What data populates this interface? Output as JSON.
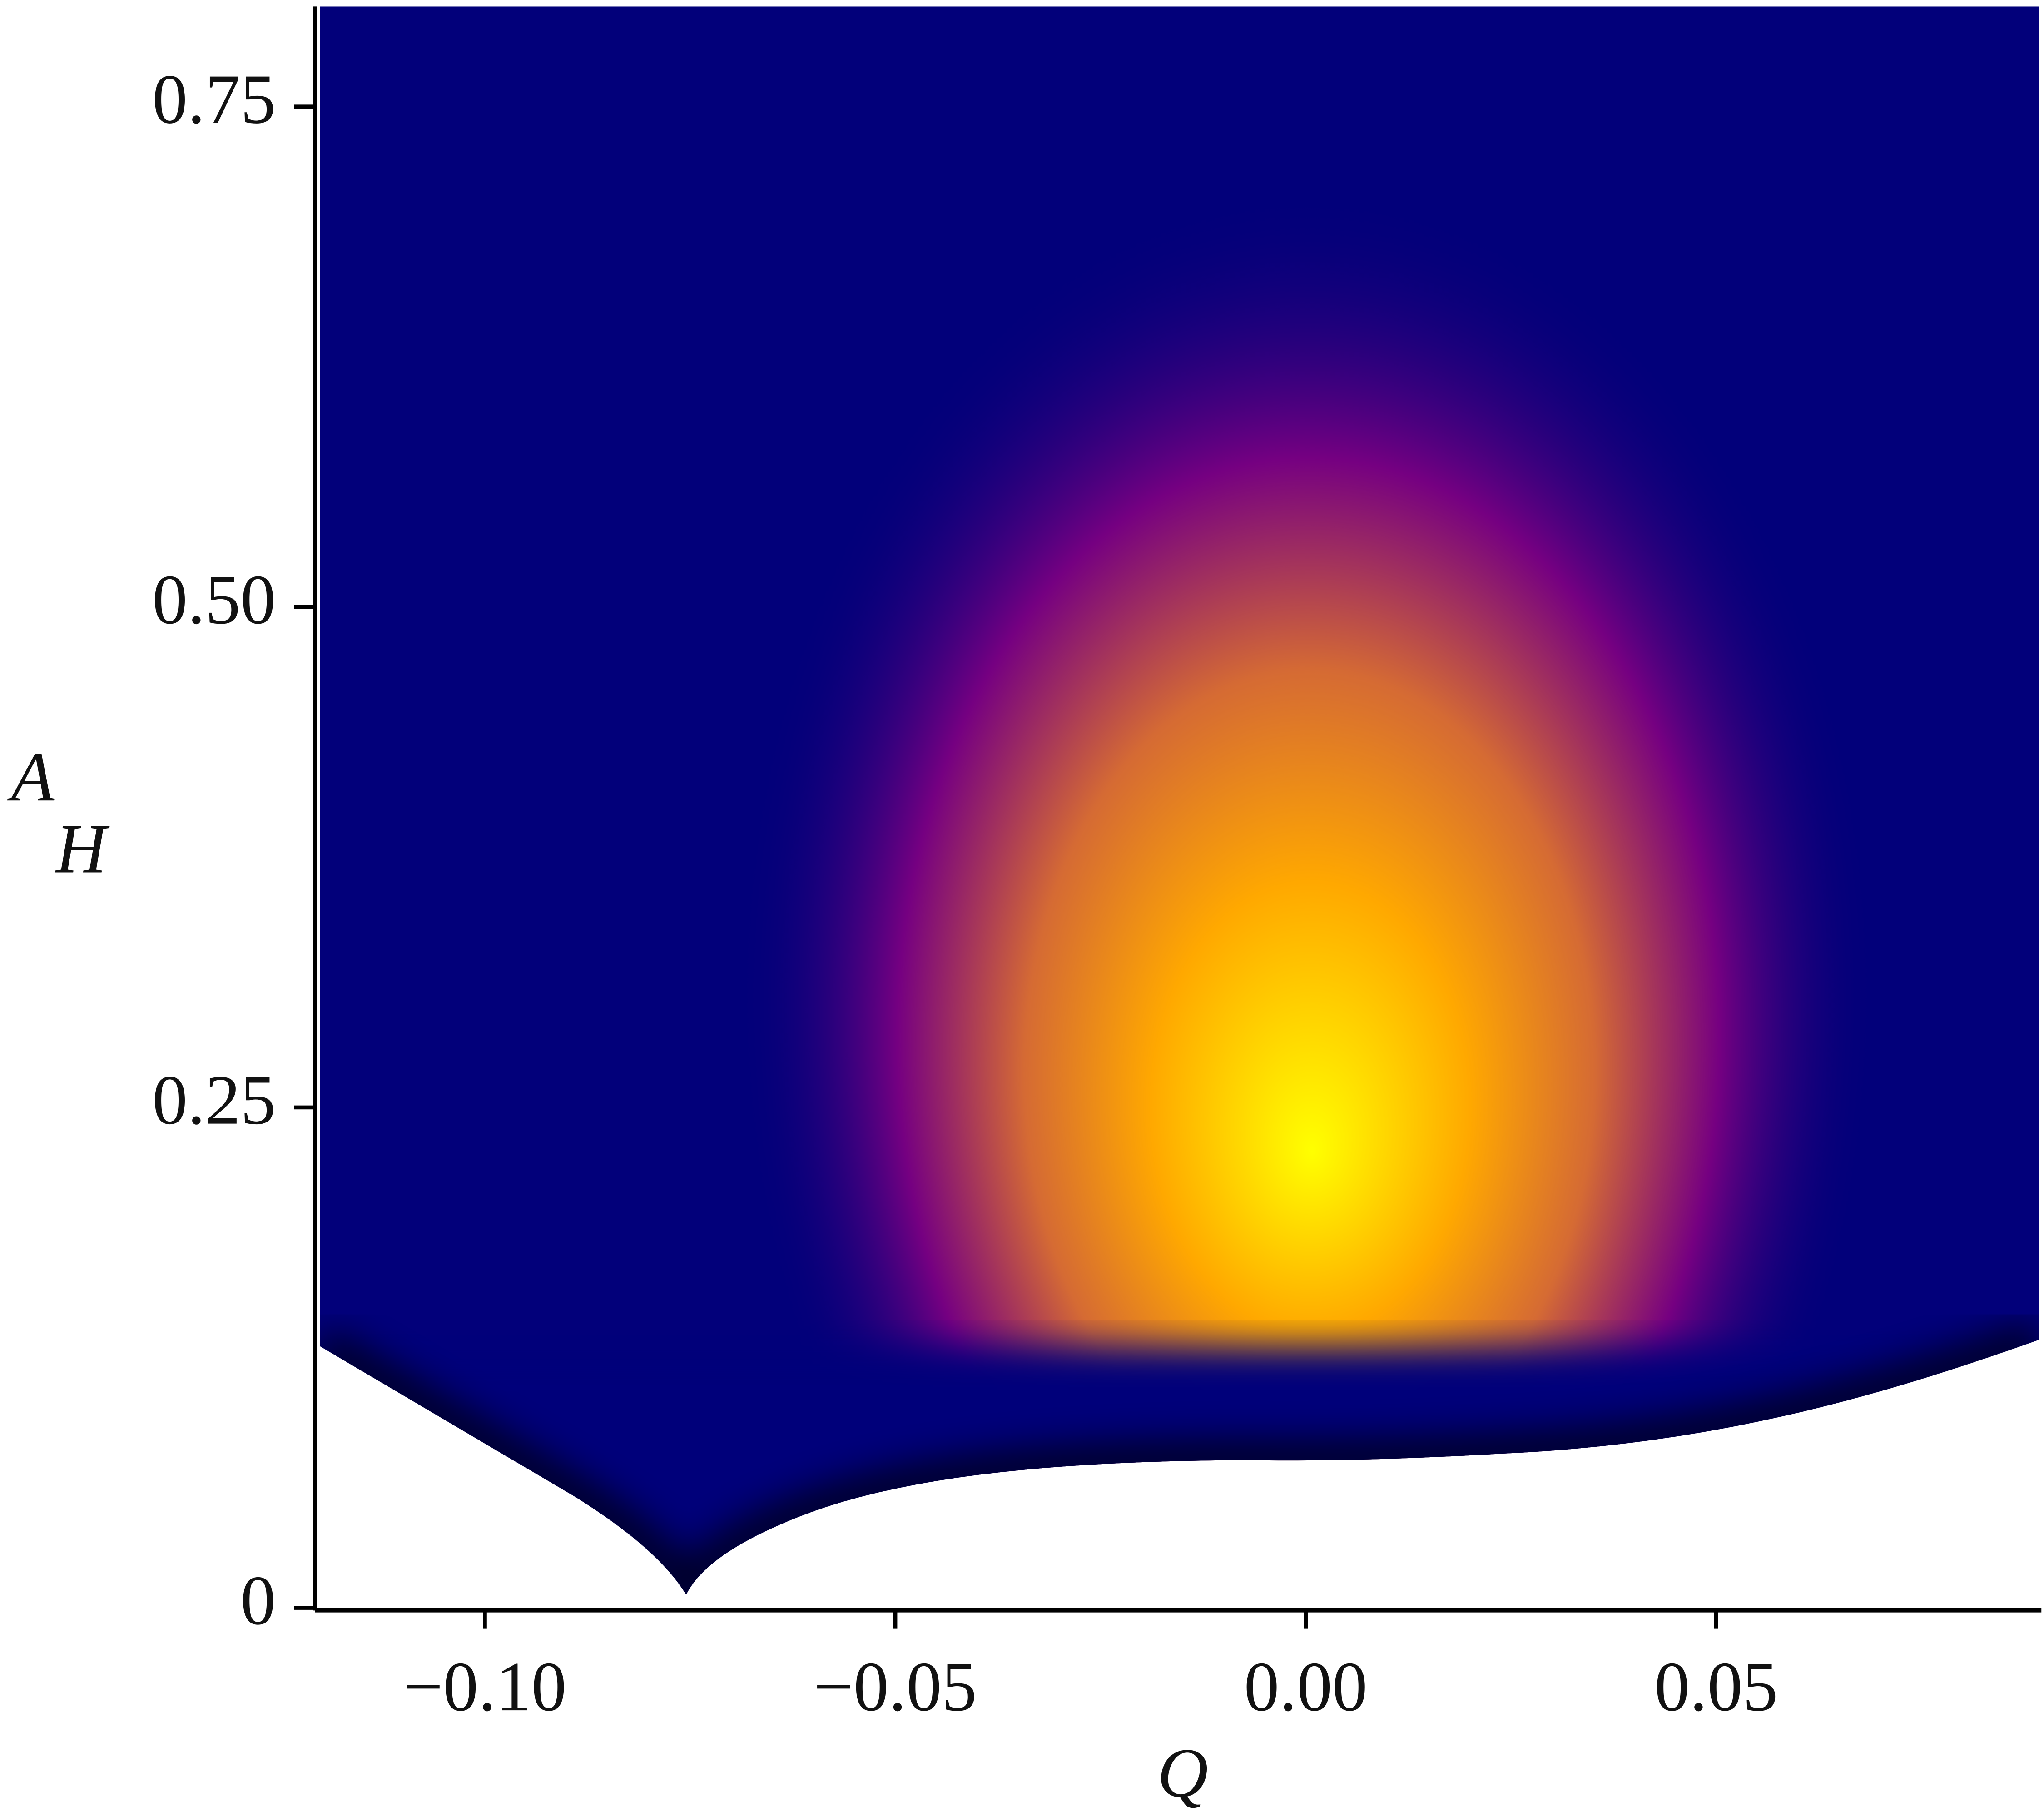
{
  "chart_data": {
    "type": "density",
    "xlabel": "Q",
    "ylabel": "A",
    "ylabel_sub": "H",
    "xlim": [
      -0.1207,
      0.0893
    ],
    "ylim": [
      0,
      0.8
    ],
    "xticks": [
      {
        "value": -0.1,
        "label": "−0.10"
      },
      {
        "value": -0.05,
        "label": "−0.05"
      },
      {
        "value": 0,
        "label": "0.00"
      },
      0.05
    ],
    "yticks": [
      0,
      0.25,
      {
        "value": 0.5,
        "label": "0.50"
      },
      0.75
    ],
    "colors": [
      "#02007a",
      "#820082",
      "#e07030",
      "#ffa800",
      "#ffff00"
    ]
  }
}
